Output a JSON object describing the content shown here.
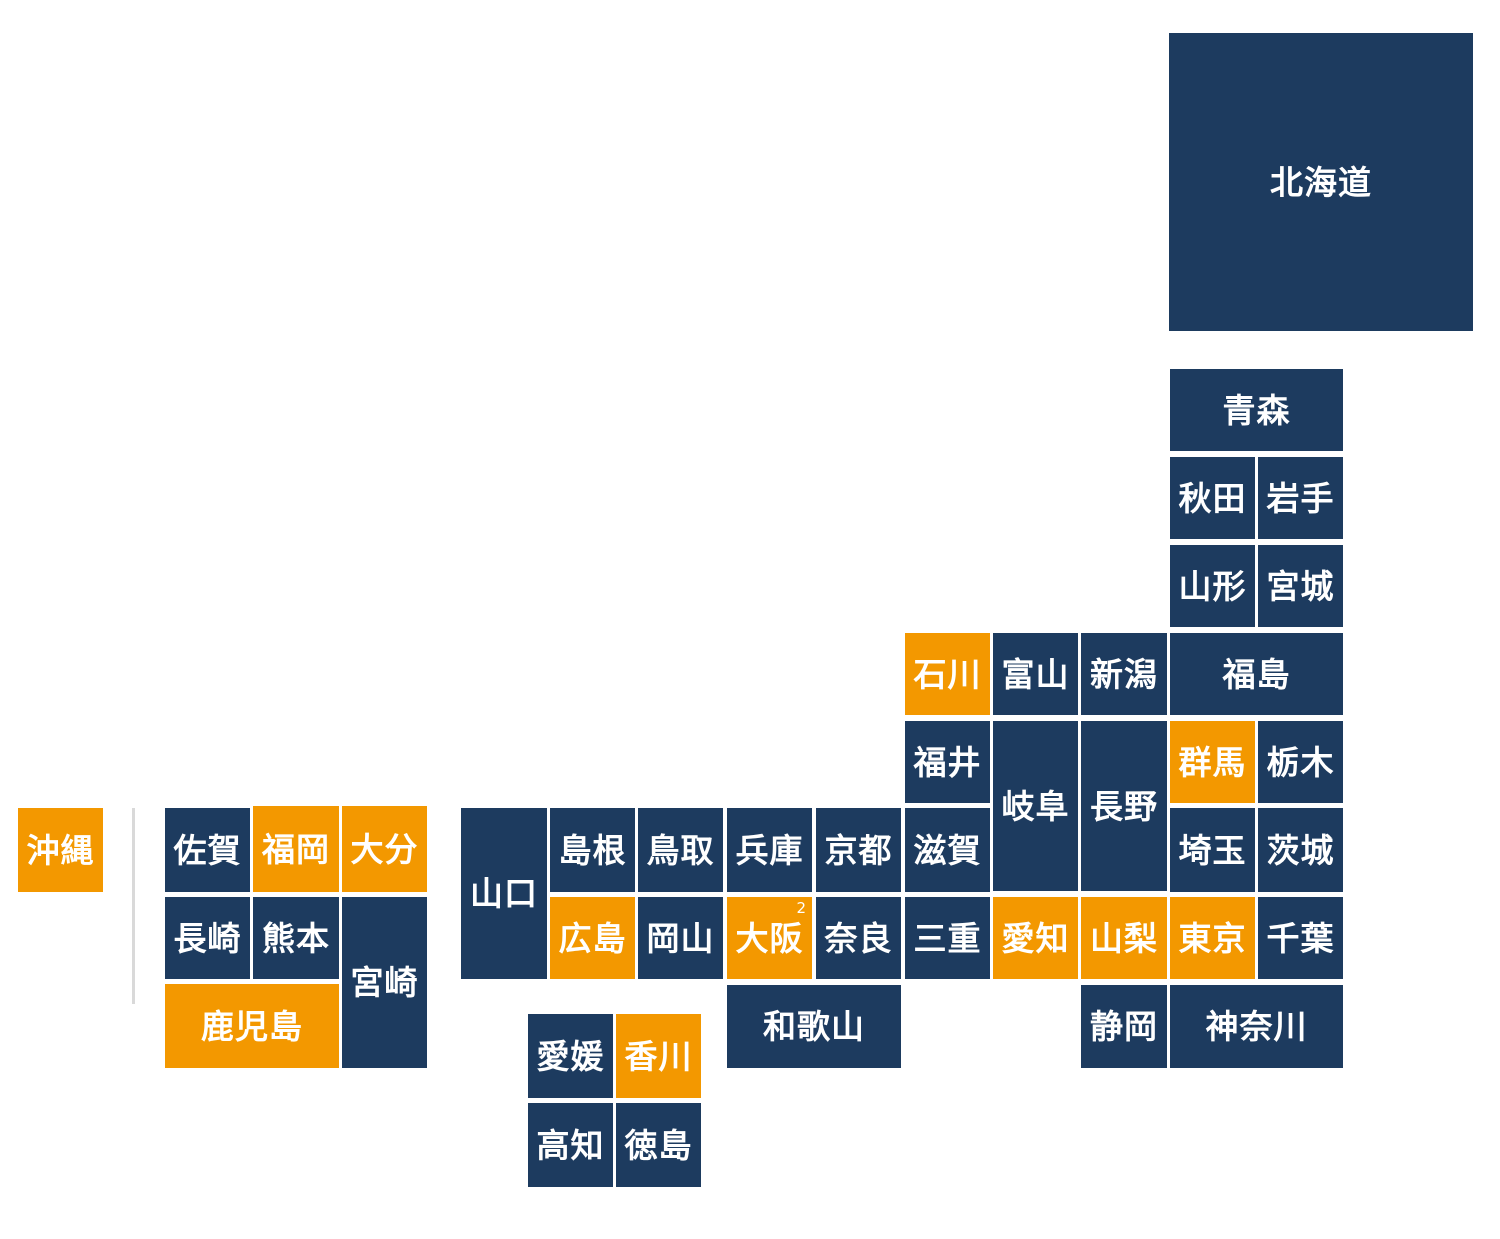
{
  "colors": {
    "default": "#1d3b5f",
    "highlighted": "#f39800",
    "text": "#ffffff",
    "separator": "#d9d9d9"
  },
  "prefectures": {
    "hokkaido": {
      "name": "北海道",
      "highlighted": false
    },
    "aomori": {
      "name": "青森",
      "highlighted": false
    },
    "akita": {
      "name": "秋田",
      "highlighted": false
    },
    "iwate": {
      "name": "岩手",
      "highlighted": false
    },
    "yamagata": {
      "name": "山形",
      "highlighted": false
    },
    "miyagi": {
      "name": "宮城",
      "highlighted": false
    },
    "ishikawa": {
      "name": "石川",
      "highlighted": true
    },
    "toyama": {
      "name": "富山",
      "highlighted": false
    },
    "niigata": {
      "name": "新潟",
      "highlighted": false
    },
    "fukushima": {
      "name": "福島",
      "highlighted": false
    },
    "fukui": {
      "name": "福井",
      "highlighted": false
    },
    "gifu": {
      "name": "岐阜",
      "highlighted": false
    },
    "nagano": {
      "name": "長野",
      "highlighted": false
    },
    "gunma": {
      "name": "群馬",
      "highlighted": true
    },
    "tochigi": {
      "name": "栃木",
      "highlighted": false
    },
    "okinawa": {
      "name": "沖縄",
      "highlighted": true
    },
    "saga": {
      "name": "佐賀",
      "highlighted": false
    },
    "fukuoka": {
      "name": "福岡",
      "highlighted": true
    },
    "oita": {
      "name": "大分",
      "highlighted": true
    },
    "yamaguchi": {
      "name": "山口",
      "highlighted": false
    },
    "shimane": {
      "name": "島根",
      "highlighted": false
    },
    "tottori": {
      "name": "鳥取",
      "highlighted": false
    },
    "hyogo": {
      "name": "兵庫",
      "highlighted": false
    },
    "kyoto": {
      "name": "京都",
      "highlighted": false
    },
    "shiga": {
      "name": "滋賀",
      "highlighted": false
    },
    "saitama": {
      "name": "埼玉",
      "highlighted": false
    },
    "ibaraki": {
      "name": "茨城",
      "highlighted": false
    },
    "nagasaki": {
      "name": "長崎",
      "highlighted": false
    },
    "kumamoto": {
      "name": "熊本",
      "highlighted": false
    },
    "miyazaki": {
      "name": "宮崎",
      "highlighted": false
    },
    "hiroshima": {
      "name": "広島",
      "highlighted": true
    },
    "okayama": {
      "name": "岡山",
      "highlighted": false
    },
    "osaka": {
      "name": "大阪",
      "highlighted": true,
      "footnote": "2"
    },
    "nara": {
      "name": "奈良",
      "highlighted": false
    },
    "mie": {
      "name": "三重",
      "highlighted": false
    },
    "aichi": {
      "name": "愛知",
      "highlighted": true
    },
    "yamanashi": {
      "name": "山梨",
      "highlighted": true
    },
    "tokyo": {
      "name": "東京",
      "highlighted": true
    },
    "chiba": {
      "name": "千葉",
      "highlighted": false
    },
    "kagoshima": {
      "name": "鹿児島",
      "highlighted": true
    },
    "wakayama": {
      "name": "和歌山",
      "highlighted": false
    },
    "shizuoka": {
      "name": "静岡",
      "highlighted": false
    },
    "kanagawa": {
      "name": "神奈川",
      "highlighted": false
    },
    "ehime": {
      "name": "愛媛",
      "highlighted": false
    },
    "kagawa": {
      "name": "香川",
      "highlighted": true
    },
    "kochi": {
      "name": "高知",
      "highlighted": false
    },
    "tokushima": {
      "name": "徳島",
      "highlighted": false
    }
  }
}
